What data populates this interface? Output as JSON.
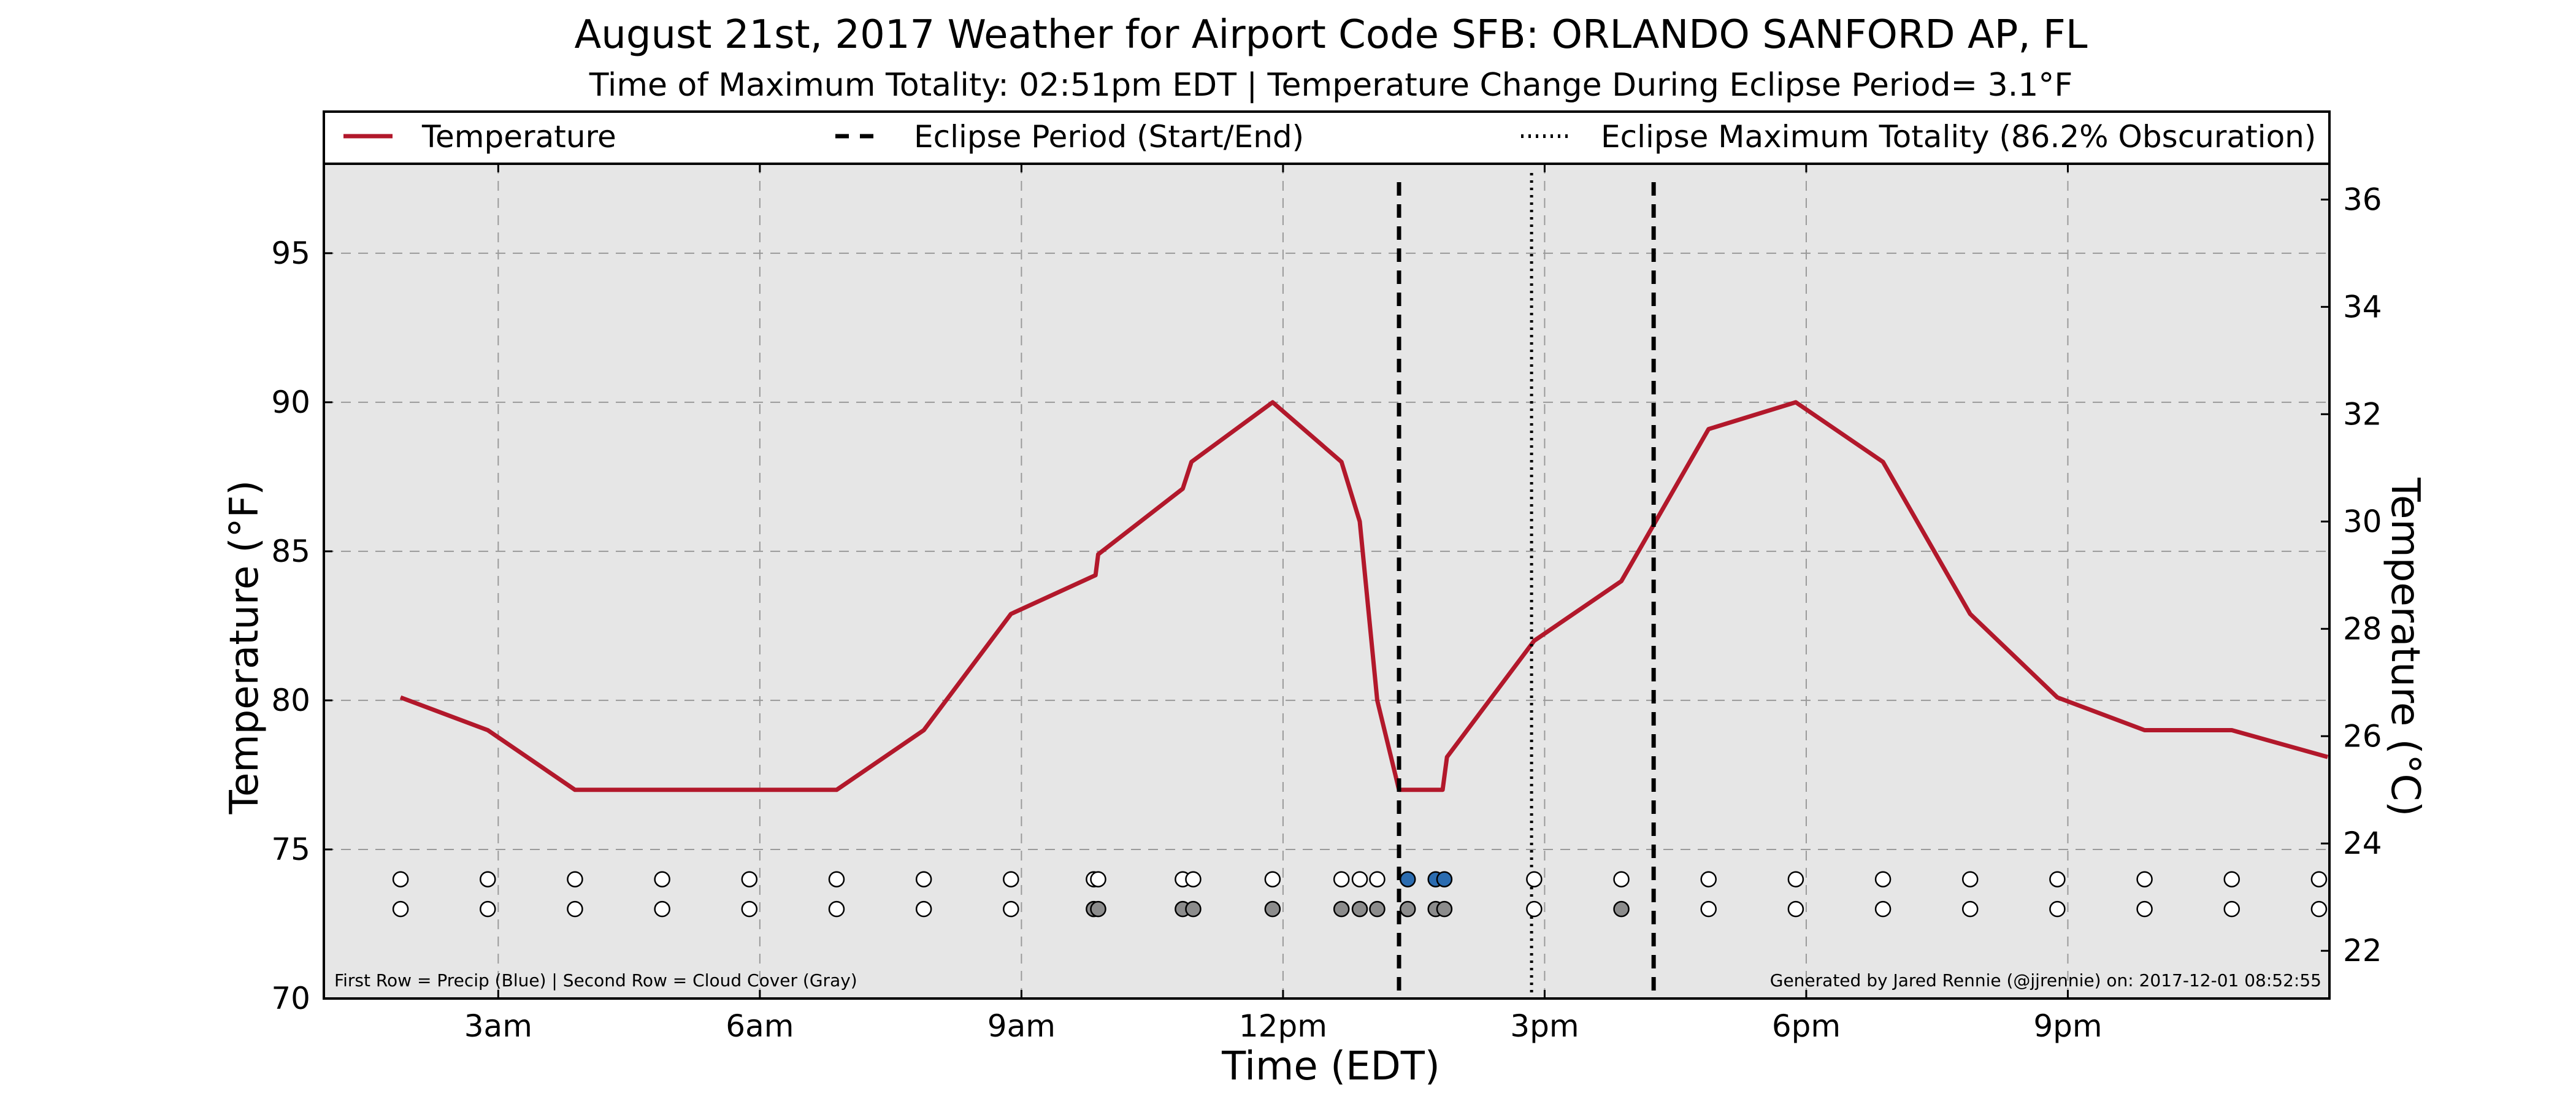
{
  "chart_data": {
    "type": "line",
    "title": "August 21st, 2017 Weather for Airport Code SFB: ORLANDO SANFORD AP, FL",
    "subtitle": "Time of Maximum Totality: 02:51pm EDT | Temperature Change During Eclipse Period= 3.1°F",
    "xlabel": "Time (EDT)",
    "ylabel": "Temperature (°F)",
    "ylabel_right": "Temperature (°C)",
    "xlim": [
      1.0,
      24.0
    ],
    "ylim": [
      70,
      98
    ],
    "ylim_right": [
      21.111,
      36.667
    ],
    "x_ticks": [
      {
        "value": 3,
        "label": "3am"
      },
      {
        "value": 6,
        "label": "6am"
      },
      {
        "value": 9,
        "label": "9am"
      },
      {
        "value": 12,
        "label": "12pm"
      },
      {
        "value": 15,
        "label": "3pm"
      },
      {
        "value": 18,
        "label": "6pm"
      },
      {
        "value": 21,
        "label": "9pm"
      }
    ],
    "y_ticks": [
      70,
      75,
      80,
      85,
      90,
      95
    ],
    "y_ticks_right": [
      22,
      24,
      26,
      28,
      30,
      32,
      34,
      36
    ],
    "grid": true,
    "legend": {
      "placement": "top",
      "entries": [
        {
          "label": "Temperature",
          "style": "solid",
          "color": "#b2182b"
        },
        {
          "label": "Eclipse Period (Start/End)",
          "style": "dashed",
          "color": "#000000"
        },
        {
          "label": "Eclipse Maximum Totality (86.2% Obscuration)",
          "style": "dotted",
          "color": "#000000"
        }
      ]
    },
    "series": [
      {
        "name": "Temperature",
        "color": "#b2182b",
        "points": [
          [
            1.88,
            80.1
          ],
          [
            2.88,
            79.0
          ],
          [
            3.88,
            77.0
          ],
          [
            4.88,
            77.0
          ],
          [
            5.88,
            77.0
          ],
          [
            6.88,
            77.0
          ],
          [
            7.88,
            79.0
          ],
          [
            8.88,
            82.9
          ],
          [
            9.85,
            84.2
          ],
          [
            9.88,
            84.9
          ],
          [
            10.85,
            87.1
          ],
          [
            10.95,
            88.0
          ],
          [
            11.88,
            90.0
          ],
          [
            12.67,
            88.0
          ],
          [
            12.88,
            86.0
          ],
          [
            13.08,
            80.0
          ],
          [
            13.33,
            77.0
          ],
          [
            13.83,
            77.0
          ],
          [
            13.88,
            78.1
          ],
          [
            14.88,
            82.0
          ],
          [
            15.88,
            84.0
          ],
          [
            16.88,
            89.1
          ],
          [
            17.88,
            90.0
          ],
          [
            18.88,
            88.0
          ],
          [
            19.88,
            82.9
          ],
          [
            20.88,
            80.1
          ],
          [
            21.88,
            79.0
          ],
          [
            22.88,
            79.0
          ],
          [
            23.98,
            78.1
          ]
        ]
      }
    ],
    "eclipse": {
      "start": 13.33,
      "max_totality": 14.85,
      "end": 16.25
    },
    "marker_rows": {
      "precip_y": 74,
      "cloud_y": 73,
      "precip": [
        {
          "x": 1.88,
          "color": "#ffffff"
        },
        {
          "x": 2.88,
          "color": "#ffffff"
        },
        {
          "x": 3.88,
          "color": "#ffffff"
        },
        {
          "x": 4.88,
          "color": "#ffffff"
        },
        {
          "x": 5.88,
          "color": "#ffffff"
        },
        {
          "x": 6.88,
          "color": "#ffffff"
        },
        {
          "x": 7.88,
          "color": "#ffffff"
        },
        {
          "x": 8.88,
          "color": "#ffffff"
        },
        {
          "x": 9.83,
          "color": "#ffffff"
        },
        {
          "x": 9.88,
          "color": "#ffffff"
        },
        {
          "x": 10.85,
          "color": "#ffffff"
        },
        {
          "x": 10.97,
          "color": "#ffffff"
        },
        {
          "x": 11.88,
          "color": "#ffffff"
        },
        {
          "x": 12.67,
          "color": "#ffffff"
        },
        {
          "x": 12.88,
          "color": "#ffffff"
        },
        {
          "x": 13.08,
          "color": "#ffffff"
        },
        {
          "x": 13.43,
          "color": "#2b6cb0"
        },
        {
          "x": 13.75,
          "color": "#2b6cb0"
        },
        {
          "x": 13.85,
          "color": "#2b6cb0"
        },
        {
          "x": 14.88,
          "color": "#ffffff"
        },
        {
          "x": 15.88,
          "color": "#ffffff"
        },
        {
          "x": 16.88,
          "color": "#ffffff"
        },
        {
          "x": 17.88,
          "color": "#ffffff"
        },
        {
          "x": 18.88,
          "color": "#ffffff"
        },
        {
          "x": 19.88,
          "color": "#ffffff"
        },
        {
          "x": 20.88,
          "color": "#ffffff"
        },
        {
          "x": 21.88,
          "color": "#ffffff"
        },
        {
          "x": 22.88,
          "color": "#ffffff"
        },
        {
          "x": 23.88,
          "color": "#ffffff"
        }
      ],
      "cloud": [
        {
          "x": 1.88,
          "color": "#ffffff"
        },
        {
          "x": 2.88,
          "color": "#ffffff"
        },
        {
          "x": 3.88,
          "color": "#ffffff"
        },
        {
          "x": 4.88,
          "color": "#ffffff"
        },
        {
          "x": 5.88,
          "color": "#ffffff"
        },
        {
          "x": 6.88,
          "color": "#ffffff"
        },
        {
          "x": 7.88,
          "color": "#ffffff"
        },
        {
          "x": 8.88,
          "color": "#ffffff"
        },
        {
          "x": 9.83,
          "color": "#8c8c8c"
        },
        {
          "x": 9.88,
          "color": "#8c8c8c"
        },
        {
          "x": 10.85,
          "color": "#8c8c8c"
        },
        {
          "x": 10.97,
          "color": "#8c8c8c"
        },
        {
          "x": 11.88,
          "color": "#8c8c8c"
        },
        {
          "x": 12.67,
          "color": "#8c8c8c"
        },
        {
          "x": 12.88,
          "color": "#8c8c8c"
        },
        {
          "x": 13.08,
          "color": "#8c8c8c"
        },
        {
          "x": 13.43,
          "color": "#8c8c8c"
        },
        {
          "x": 13.75,
          "color": "#8c8c8c"
        },
        {
          "x": 13.85,
          "color": "#8c8c8c"
        },
        {
          "x": 14.88,
          "color": "#ffffff"
        },
        {
          "x": 15.88,
          "color": "#8c8c8c"
        },
        {
          "x": 16.88,
          "color": "#ffffff"
        },
        {
          "x": 17.88,
          "color": "#ffffff"
        },
        {
          "x": 18.88,
          "color": "#ffffff"
        },
        {
          "x": 19.88,
          "color": "#ffffff"
        },
        {
          "x": 20.88,
          "color": "#ffffff"
        },
        {
          "x": 21.88,
          "color": "#ffffff"
        },
        {
          "x": 22.88,
          "color": "#ffffff"
        },
        {
          "x": 23.88,
          "color": "#ffffff"
        }
      ]
    },
    "annotations": {
      "left_note": "First Row = Precip (Blue) | Second Row = Cloud Cover (Gray)",
      "right_note": "Generated by Jared Rennie (@jjrennie) on: 2017-12-01 08:52:55"
    },
    "colors": {
      "plot_background": "#e6e6e6",
      "grid": "#9a9a9a",
      "temperature_line": "#b2182b",
      "precip_marker": "#2b6cb0",
      "cloud_marker": "#8c8c8c"
    }
  }
}
